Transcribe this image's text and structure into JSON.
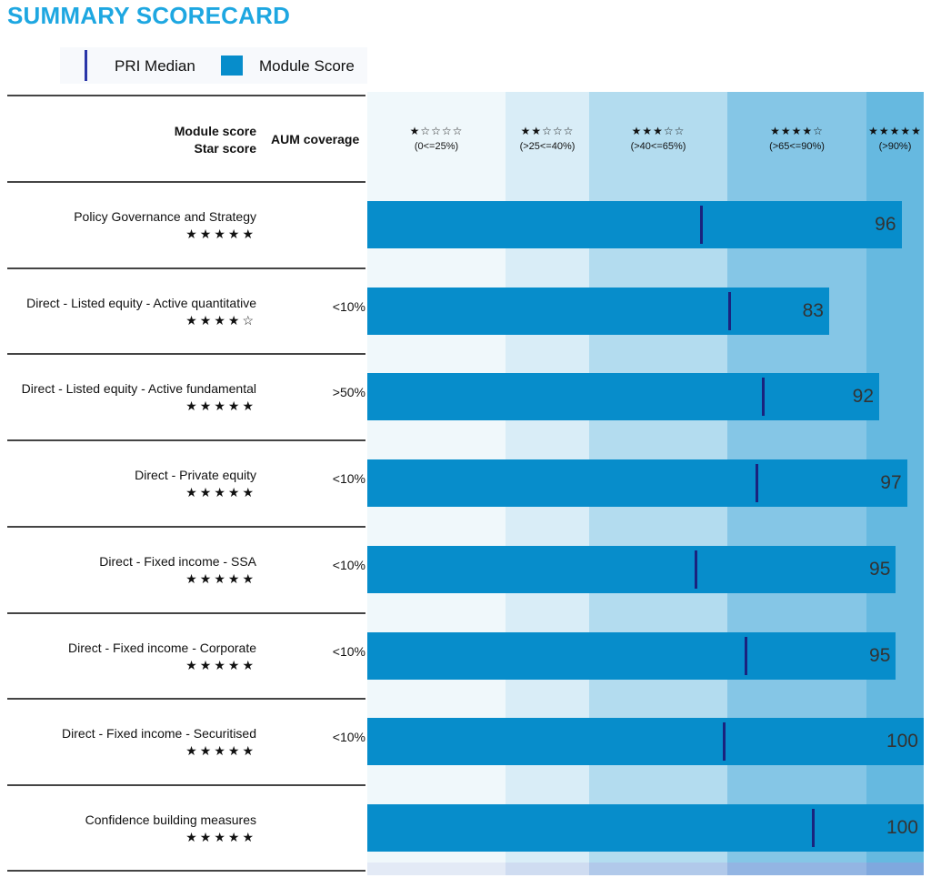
{
  "title": "SUMMARY SCORECARD",
  "legend": {
    "median_label": "PRI Median",
    "score_label": "Module Score"
  },
  "header": {
    "module_score": "Module score",
    "star_score": "Star score",
    "aum_coverage": "AUM coverage"
  },
  "colors": {
    "bar": "#078dcb",
    "median": "#1a237e",
    "bands": [
      "#f0f8fb",
      "#d9edf7",
      "#b3dcef",
      "#85c6e6",
      "#66b9e0"
    ],
    "band_feet": [
      "#e3eaf6",
      "#cfdcf1",
      "#b1c9ea",
      "#93b5e3",
      "#7fa8de"
    ]
  },
  "chart_data": {
    "type": "bar",
    "orientation": "horizontal",
    "xlim": [
      0,
      100
    ],
    "bands": [
      {
        "stars": "★☆☆☆☆",
        "range": "(0<=25%)",
        "from": 0,
        "to": 25
      },
      {
        "stars": "★★☆☆☆",
        "range": "(>25<=40%)",
        "from": 25,
        "to": 40
      },
      {
        "stars": "★★★☆☆",
        "range": "(>40<=65%)",
        "from": 40,
        "to": 65
      },
      {
        "stars": "★★★★☆",
        "range": "(>65<=90%)",
        "from": 65,
        "to": 90
      },
      {
        "stars": "★★★★★",
        "range": "(>90%)",
        "from": 90,
        "to": 100
      }
    ],
    "rows": [
      {
        "label": "Policy Governance and Strategy",
        "stars": "★★★★★",
        "aum": "",
        "score": 96,
        "median": 60
      },
      {
        "label": "Direct - Listed equity - Active quantitative",
        "stars": "★★★★☆",
        "aum": "<10%",
        "score": 83,
        "median": 65
      },
      {
        "label": "Direct - Listed equity - Active fundamental",
        "stars": "★★★★★",
        "aum": ">50%",
        "score": 92,
        "median": 71
      },
      {
        "label": "Direct - Private equity",
        "stars": "★★★★★",
        "aum": "<10%",
        "score": 97,
        "median": 70
      },
      {
        "label": "Direct - Fixed income - SSA",
        "stars": "★★★★★",
        "aum": "<10%",
        "score": 95,
        "median": 59
      },
      {
        "label": "Direct - Fixed income - Corporate",
        "stars": "★★★★★",
        "aum": "<10%",
        "score": 95,
        "median": 68
      },
      {
        "label": "Direct - Fixed income - Securitised",
        "stars": "★★★★★",
        "aum": "<10%",
        "score": 100,
        "median": 64
      },
      {
        "label": "Confidence building measures",
        "stars": "★★★★★",
        "aum": "",
        "score": 100,
        "median": 80
      }
    ]
  }
}
